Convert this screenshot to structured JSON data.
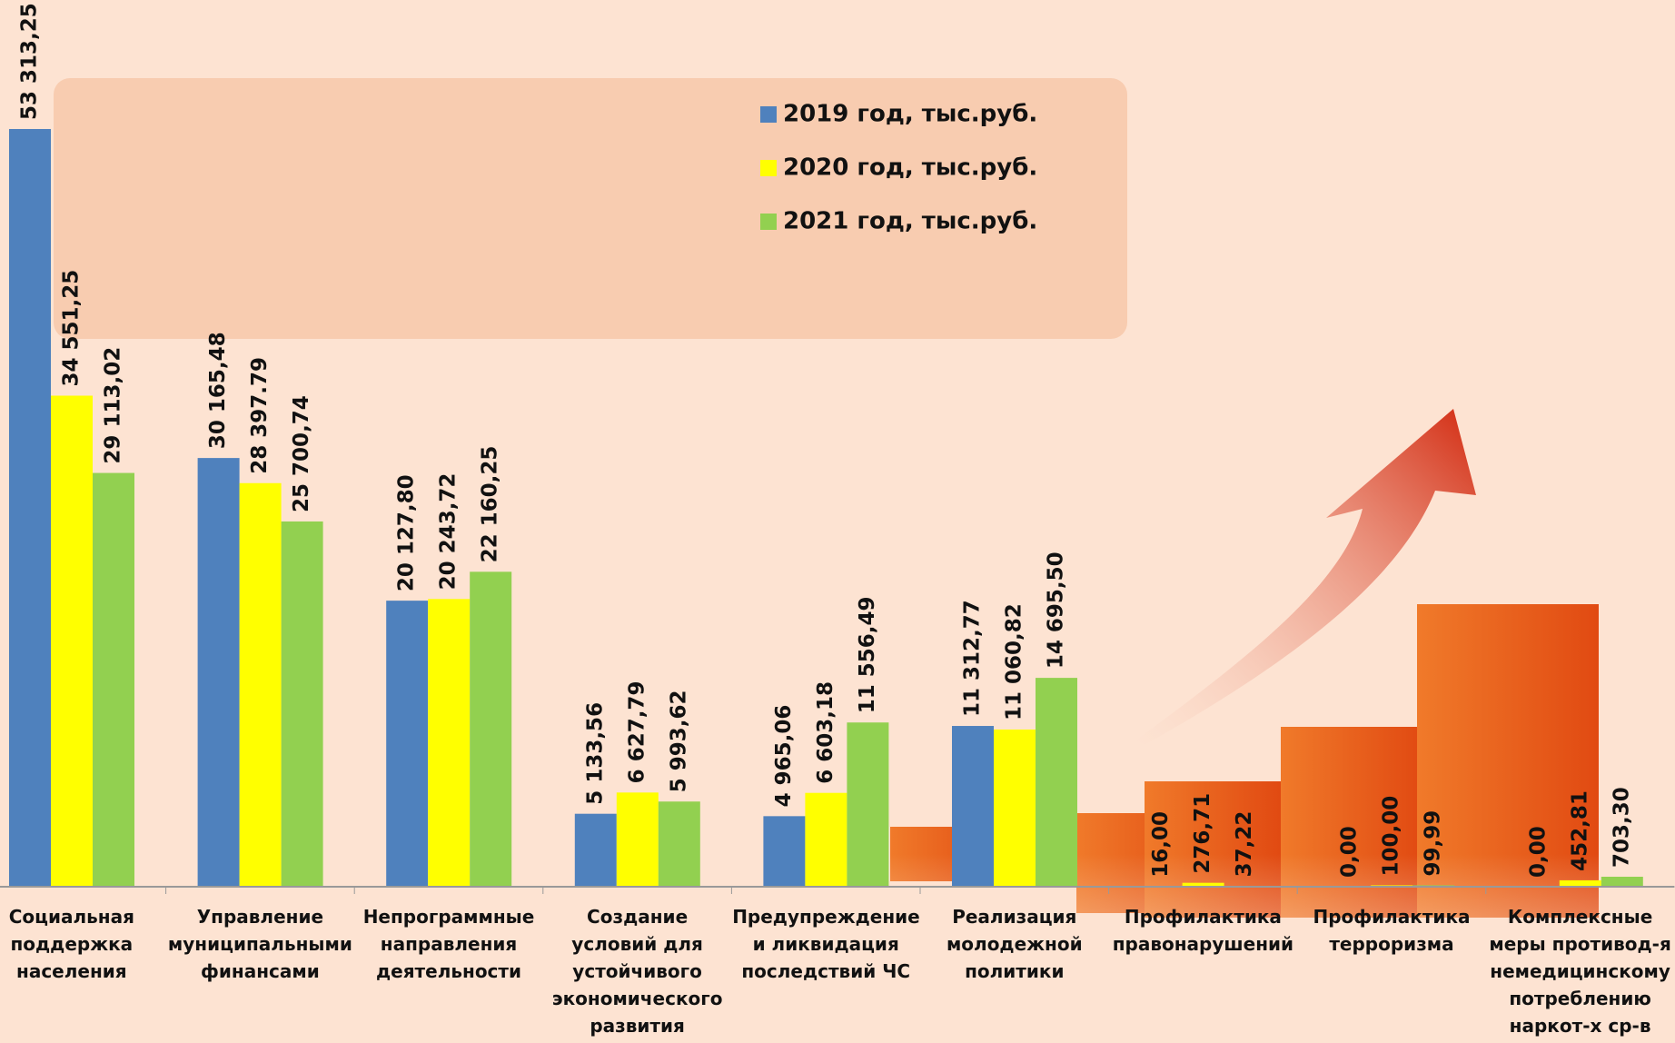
{
  "chart_data": {
    "type": "bar",
    "categories": [
      "Социальная поддержка населения",
      "Управление муниципальными финансами",
      "Непрограммные направления деятельности",
      "Создание условий для устойчивого экономического развития",
      "Предупреждение и ликвидация последствий ЧС",
      "Реализация молодежной политики",
      "Профилактика правонарушений",
      "Профилактика терроризма",
      "Комплексные меры противод-я немедицинскому потреблению наркот-х ср-в"
    ],
    "series": [
      {
        "name": "2019 год, тыс.руб.",
        "color": "#4f81bd",
        "values": [
          53313.25,
          30165.48,
          20127.8,
          5133.56,
          4965.06,
          11312.77,
          16.0,
          0.0,
          0.0
        ],
        "value_labels": [
          "53 313,25",
          "30 165,48",
          "20 127,80",
          "5 133,56",
          "4 965,06",
          "11 312,77",
          "16,00",
          "0,00",
          "0,00"
        ]
      },
      {
        "name": "2020 год, тыс.руб.",
        "color": "#ffff00",
        "values": [
          34551.25,
          28397.79,
          20243.72,
          6627.79,
          6603.18,
          11060.82,
          276.71,
          100.0,
          452.81
        ],
        "value_labels": [
          "34 551,25",
          "28 397.79",
          "20 243,72",
          "6 627,79",
          "6 603,18",
          "11 060,82",
          "276,71",
          "100,00",
          "452,81"
        ]
      },
      {
        "name": "2021 год, тыс.руб.",
        "color": "#92d050",
        "values": [
          29113.02,
          25700.74,
          22160.25,
          5993.62,
          11556.49,
          14695.5,
          37.22,
          99.99,
          703.3
        ],
        "value_labels": [
          "29 113,02",
          "25 700,74",
          "22 160,25",
          "5 993,62",
          "11 556,49",
          "14 695,50",
          "37,22",
          "99,99",
          "703,30"
        ]
      }
    ]
  }
}
